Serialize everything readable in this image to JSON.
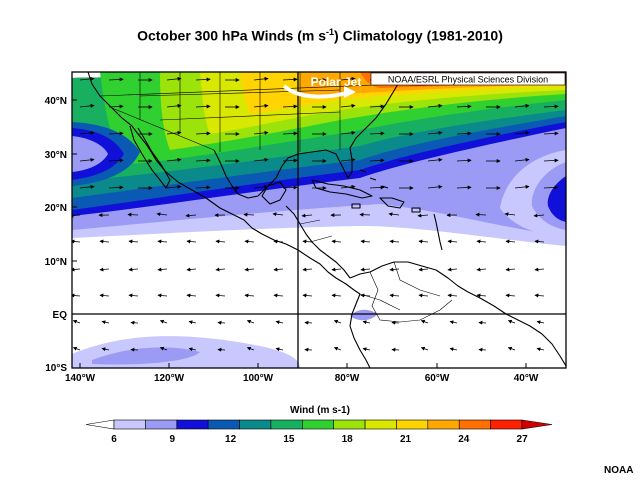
{
  "title": {
    "main": "October 300 hPa Winds (m s",
    "sup": "-1",
    "tail": ") Climatology (1981-2010)"
  },
  "inset_label": "NOAA/ESRL Physical Sciences Division",
  "annotation": "Polar Jet",
  "lat_ticks": [
    "40°N",
    "30°N",
    "20°N",
    "10°N",
    "EQ",
    "10°S"
  ],
  "lon_ticks": [
    "140°W",
    "120°W",
    "100°W",
    "80°W",
    "60°W",
    "40°W"
  ],
  "colorbar": {
    "title": "Wind (m s-1)",
    "labels": [
      "6",
      "9",
      "12",
      "15",
      "18",
      "21",
      "24",
      "27"
    ],
    "colors": [
      "#c8c8ff",
      "#9b9bf6",
      "#1010d8",
      "#0a5ab4",
      "#0a8a8a",
      "#18b060",
      "#30d030",
      "#9be30a",
      "#d8e800",
      "#ffd400",
      "#ffa800",
      "#ff7000",
      "#ff2000"
    ],
    "under_color": "#ffffff",
    "over_color": "#d00000"
  },
  "credit": "NOAA"
}
